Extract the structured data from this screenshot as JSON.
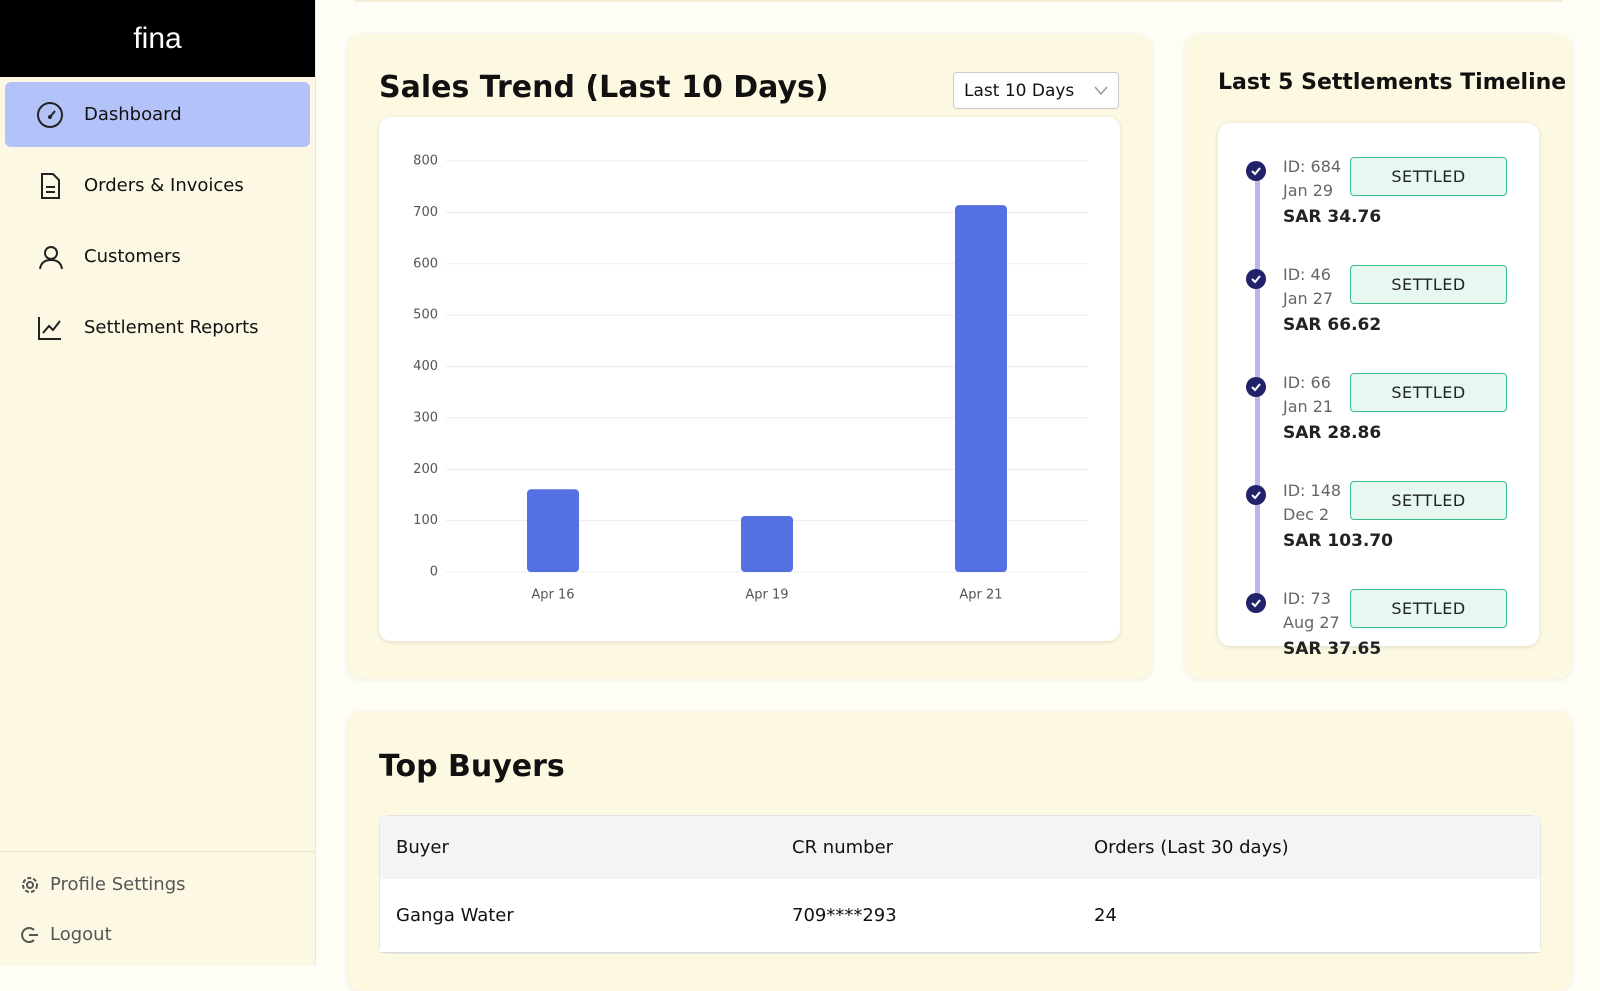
{
  "sidebar": {
    "logo": "fina",
    "nav": [
      {
        "label": "Dashboard",
        "active": true
      },
      {
        "label": "Orders & Invoices",
        "active": false
      },
      {
        "label": "Customers",
        "active": false
      },
      {
        "label": "Settlement Reports",
        "active": false
      }
    ],
    "footer": [
      "Profile Settings",
      "Logout"
    ]
  },
  "sales_panel": {
    "range_select": "Last 10 Days"
  },
  "chart_data": {
    "type": "bar",
    "title": "Sales Trend (Last 10 Days)",
    "categories": [
      "Apr 16",
      "Apr 19",
      "Apr 21"
    ],
    "values": [
      161,
      109,
      714
    ],
    "color": "#5570e3",
    "ylim": [
      0,
      800
    ],
    "yticks": [
      0,
      100,
      200,
      300,
      400,
      500,
      600,
      700,
      800
    ],
    "grid": true
  },
  "settlements": {
    "title": "Last 5 Settlements Timeline",
    "items": [
      {
        "id": "ID: 684",
        "date": "Jan 29",
        "status": "SETTLED",
        "amount": "SAR 34.76"
      },
      {
        "id": "ID: 46",
        "date": "Jan 27",
        "status": "SETTLED",
        "amount": "SAR 66.62"
      },
      {
        "id": "ID: 66",
        "date": "Jan 21",
        "status": "SETTLED",
        "amount": "SAR 28.86"
      },
      {
        "id": "ID: 148",
        "date": "Dec 2",
        "status": "SETTLED",
        "amount": "SAR 103.70"
      },
      {
        "id": "ID: 73",
        "date": "Aug 27",
        "status": "SETTLED",
        "amount": "SAR 37.65"
      }
    ]
  },
  "top_buyers": {
    "title": "Top Buyers",
    "table": {
      "headers": [
        "Buyer",
        "CR number",
        "Orders (Last 30 days)"
      ],
      "rows": [
        [
          "Ganga Water",
          "709****293",
          24
        ]
      ]
    }
  }
}
